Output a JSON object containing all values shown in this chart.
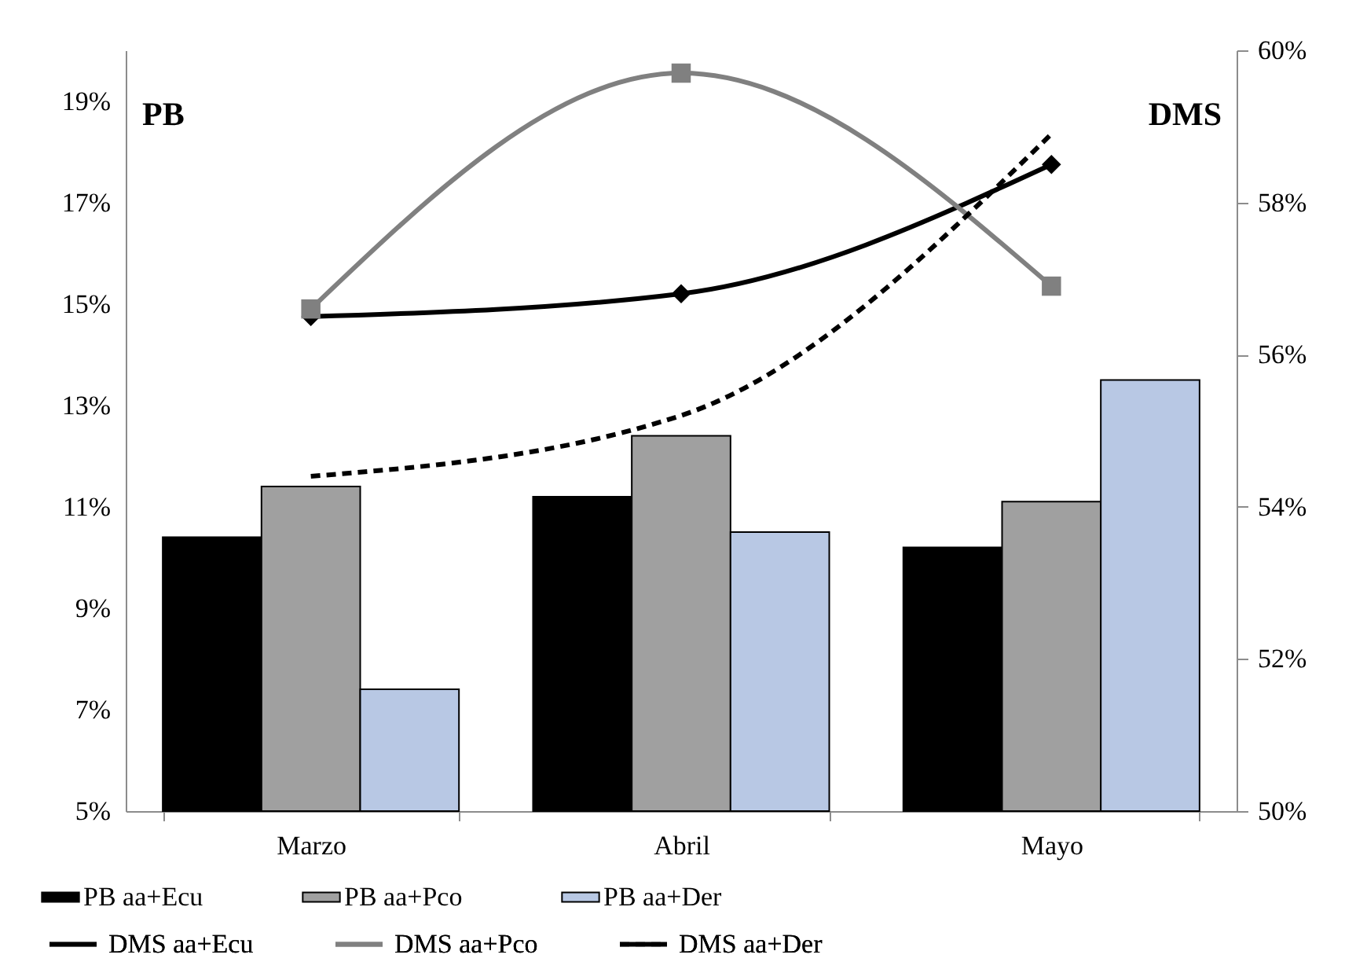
{
  "chart_data": {
    "type": "bar",
    "ylabel": "PB",
    "y2label": "DMS",
    "categories": [
      "Marzo",
      "Abril",
      "Mayo"
    ],
    "series": [
      {
        "name": "PB aa+Ecu",
        "type": "bar",
        "color": "#000000",
        "values": [
          10.4,
          11.2,
          10.2
        ]
      },
      {
        "name": "PB aa+Pco",
        "type": "bar",
        "color": "#a0a0a0",
        "values": [
          11.4,
          12.4,
          11.1
        ]
      },
      {
        "name": "PB aa+Der",
        "type": "bar",
        "color": "#b8c8e4",
        "values": [
          7.4,
          10.5,
          13.5
        ]
      },
      {
        "name": "DMS aa+Ecu",
        "type": "line",
        "axis": "y2",
        "color": "#000000",
        "marker": "diamond",
        "line_style": "solid",
        "values": [
          56.5,
          56.8,
          58.5
        ]
      },
      {
        "name": "DMS aa+Pco",
        "type": "line",
        "axis": "y2",
        "color": "#808080",
        "marker": "square",
        "line_style": "solid",
        "values": [
          56.6,
          59.7,
          56.9
        ]
      },
      {
        "name": "DMS aa+Der",
        "type": "line",
        "axis": "y2",
        "color": "#000000",
        "marker": "none",
        "line_style": "dashed",
        "values": [
          54.4,
          55.2,
          58.9
        ]
      }
    ],
    "ylim": [
      5,
      20
    ],
    "yticks": [
      {
        "value": 5,
        "label": "5%"
      },
      {
        "value": 7,
        "label": "7%"
      },
      {
        "value": 9,
        "label": "9%"
      },
      {
        "value": 11,
        "label": "11%"
      },
      {
        "value": 13,
        "label": "13%"
      },
      {
        "value": 15,
        "label": "15%"
      },
      {
        "value": 17,
        "label": "17%"
      },
      {
        "value": 19,
        "label": "19%"
      }
    ],
    "y2lim": [
      50,
      60
    ],
    "y2ticks": [
      {
        "value": 50,
        "label": "50%"
      },
      {
        "value": 52,
        "label": "52%"
      },
      {
        "value": 54,
        "label": "54%"
      },
      {
        "value": 56,
        "label": "56%"
      },
      {
        "value": 58,
        "label": "58%"
      },
      {
        "value": 60,
        "label": "60%"
      }
    ],
    "grid": false,
    "legend": "bottom"
  }
}
